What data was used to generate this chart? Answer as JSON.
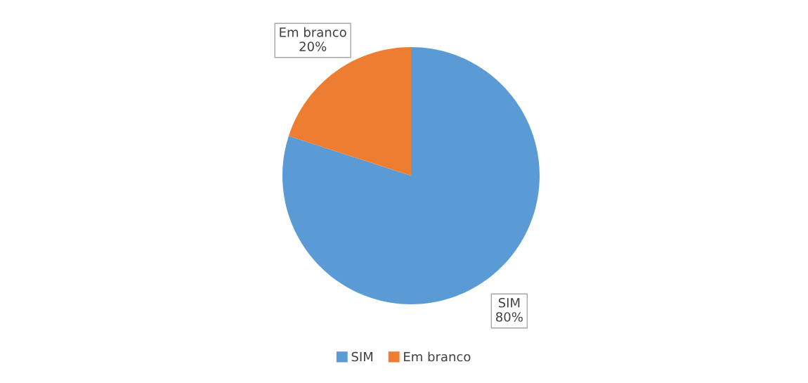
{
  "chart_data": {
    "type": "pie",
    "categories": [
      "SIM",
      "Em branco"
    ],
    "values": [
      80,
      20
    ],
    "colors": [
      "#5b9bd5",
      "#ed7d31"
    ],
    "value_labels": [
      "80%",
      "20%"
    ],
    "legend": "bottom"
  }
}
